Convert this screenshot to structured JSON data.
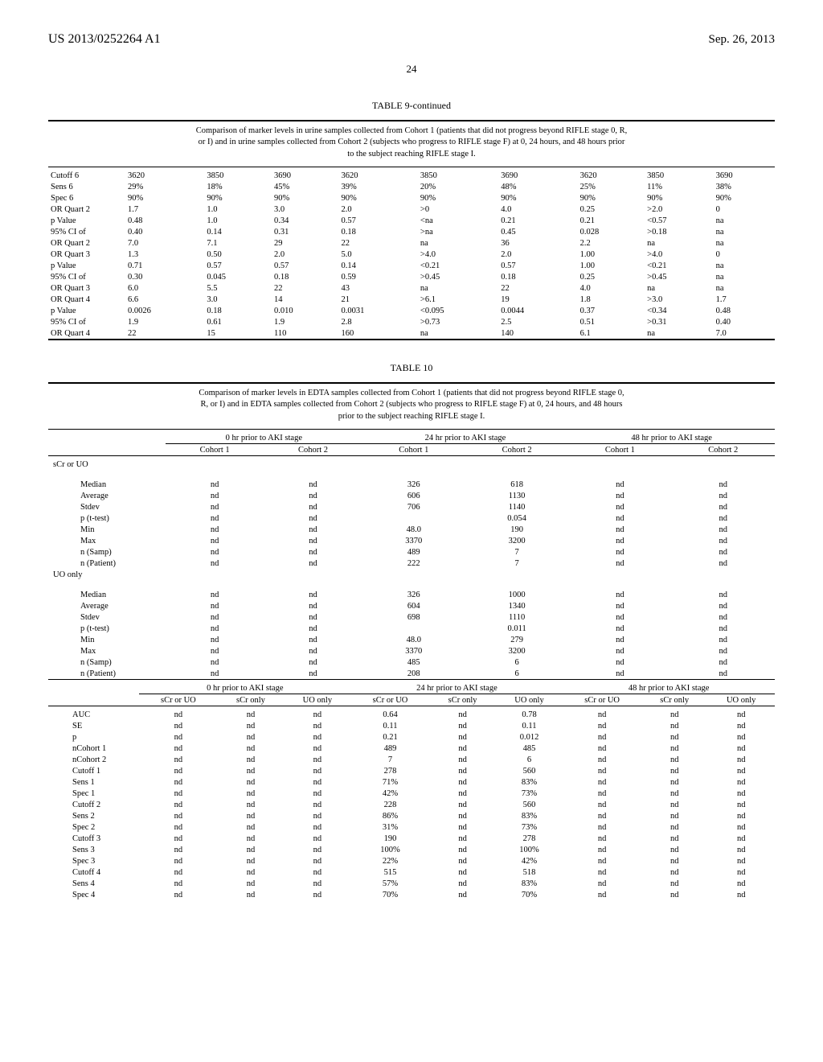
{
  "header": {
    "patent": "US 2013/0252264 A1",
    "date": "Sep. 26, 2013",
    "page": "24"
  },
  "table9": {
    "title": "TABLE 9-continued",
    "desc": "Comparison of marker levels in urine samples collected from Cohort 1 (patients that did not progress beyond RIFLE stage 0, R, or I) and in urine samples collected from Cohort 2 (subjects who progress to RIFLE stage F) at 0, 24 hours, and 48 hours prior to the subject reaching RIFLE stage I.",
    "rows": [
      [
        "Cutoff 6",
        "3620",
        "3850",
        "3690",
        "3620",
        "3850",
        "3690",
        "3620",
        "3850",
        "3690"
      ],
      [
        "Sens 6",
        "29%",
        "18%",
        "45%",
        "39%",
        "20%",
        "48%",
        "25%",
        "11%",
        "38%"
      ],
      [
        "Spec 6",
        "90%",
        "90%",
        "90%",
        "90%",
        "90%",
        "90%",
        "90%",
        "90%",
        "90%"
      ],
      [
        "OR Quart 2",
        "1.7",
        "1.0",
        "3.0",
        "2.0",
        ">0",
        "4.0",
        "0.25",
        ">2.0",
        "0"
      ],
      [
        "p Value",
        "0.48",
        "1.0",
        "0.34",
        "0.57",
        "<na",
        "0.21",
        "0.21",
        "<0.57",
        "na"
      ],
      [
        "95% CI of",
        "0.40",
        "0.14",
        "0.31",
        "0.18",
        ">na",
        "0.45",
        "0.028",
        ">0.18",
        "na"
      ],
      [
        "OR Quart 2",
        "7.0",
        "7.1",
        "29",
        "22",
        "na",
        "36",
        "2.2",
        "na",
        "na"
      ],
      [
        "OR Quart 3",
        "1.3",
        "0.50",
        "2.0",
        "5.0",
        ">4.0",
        "2.0",
        "1.00",
        ">4.0",
        "0"
      ],
      [
        "p Value",
        "0.71",
        "0.57",
        "0.57",
        "0.14",
        "<0.21",
        "0.57",
        "1.00",
        "<0.21",
        "na"
      ],
      [
        "95% CI of",
        "0.30",
        "0.045",
        "0.18",
        "0.59",
        ">0.45",
        "0.18",
        "0.25",
        ">0.45",
        "na"
      ],
      [
        "OR Quart 3",
        "6.0",
        "5.5",
        "22",
        "43",
        "na",
        "22",
        "4.0",
        "na",
        "na"
      ],
      [
        "OR Quart 4",
        "6.6",
        "3.0",
        "14",
        "21",
        ">6.1",
        "19",
        "1.8",
        ">3.0",
        "1.7"
      ],
      [
        "p Value",
        "0.0026",
        "0.18",
        "0.010",
        "0.0031",
        "<0.095",
        "0.0044",
        "0.37",
        "<0.34",
        "0.48"
      ],
      [
        "95% CI of",
        "1.9",
        "0.61",
        "1.9",
        "2.8",
        ">0.73",
        "2.5",
        "0.51",
        ">0.31",
        "0.40"
      ],
      [
        "OR Quart 4",
        "22",
        "15",
        "110",
        "160",
        "na",
        "140",
        "6.1",
        "na",
        "7.0"
      ]
    ]
  },
  "table10": {
    "title": "TABLE 10",
    "desc": "Comparison of marker levels in EDTA samples collected from Cohort 1 (patients that did not progress beyond RIFLE stage 0, R, or I) and in EDTA samples collected from Cohort 2 (subjects who progress to RIFLE stage F) at 0, 24 hours, and 48 hours prior to the subject reaching RIFLE stage I.",
    "groupHeaders": [
      "0 hr prior to AKI stage",
      "24 hr prior to AKI stage",
      "48 hr prior to AKI stage"
    ],
    "subHeadersA": [
      "Cohort 1",
      "Cohort 2",
      "Cohort 1",
      "Cohort 2",
      "Cohort 1",
      "Cohort 2"
    ],
    "sectionA1": "sCr or UO",
    "rowsA1": [
      [
        "Median",
        "nd",
        "nd",
        "326",
        "618",
        "nd",
        "nd"
      ],
      [
        "Average",
        "nd",
        "nd",
        "606",
        "1130",
        "nd",
        "nd"
      ],
      [
        "Stdev",
        "nd",
        "nd",
        "706",
        "1140",
        "nd",
        "nd"
      ],
      [
        "p (t-test)",
        "nd",
        "nd",
        "",
        "0.054",
        "nd",
        "nd"
      ],
      [
        "Min",
        "nd",
        "nd",
        "48.0",
        "190",
        "nd",
        "nd"
      ],
      [
        "Max",
        "nd",
        "nd",
        "3370",
        "3200",
        "nd",
        "nd"
      ],
      [
        "n (Samp)",
        "nd",
        "nd",
        "489",
        "7",
        "nd",
        "nd"
      ],
      [
        "n (Patient)",
        "nd",
        "nd",
        "222",
        "7",
        "nd",
        "nd"
      ]
    ],
    "sectionA2": "UO only",
    "rowsA2": [
      [
        "Median",
        "nd",
        "nd",
        "326",
        "1000",
        "nd",
        "nd"
      ],
      [
        "Average",
        "nd",
        "nd",
        "604",
        "1340",
        "nd",
        "nd"
      ],
      [
        "Stdev",
        "nd",
        "nd",
        "698",
        "1110",
        "nd",
        "nd"
      ],
      [
        "p (t-test)",
        "nd",
        "nd",
        "",
        "0.011",
        "nd",
        "nd"
      ],
      [
        "Min",
        "nd",
        "nd",
        "48.0",
        "279",
        "nd",
        "nd"
      ],
      [
        "Max",
        "nd",
        "nd",
        "3370",
        "3200",
        "nd",
        "nd"
      ],
      [
        "n (Samp)",
        "nd",
        "nd",
        "485",
        "6",
        "nd",
        "nd"
      ],
      [
        "n (Patient)",
        "nd",
        "nd",
        "208",
        "6",
        "nd",
        "nd"
      ]
    ],
    "subHeadersB": [
      "sCr or UO",
      "sCr only",
      "UO only",
      "sCr or UO",
      "sCr only",
      "UO only",
      "sCr or UO",
      "sCr only",
      "UO only"
    ],
    "rowsB": [
      [
        "AUC",
        "nd",
        "nd",
        "nd",
        "0.64",
        "nd",
        "0.78",
        "nd",
        "nd",
        "nd"
      ],
      [
        "SE",
        "nd",
        "nd",
        "nd",
        "0.11",
        "nd",
        "0.11",
        "nd",
        "nd",
        "nd"
      ],
      [
        "p",
        "nd",
        "nd",
        "nd",
        "0.21",
        "nd",
        "0.012",
        "nd",
        "nd",
        "nd"
      ],
      [
        "nCohort 1",
        "nd",
        "nd",
        "nd",
        "489",
        "nd",
        "485",
        "nd",
        "nd",
        "nd"
      ],
      [
        "nCohort 2",
        "nd",
        "nd",
        "nd",
        "7",
        "nd",
        "6",
        "nd",
        "nd",
        "nd"
      ],
      [
        "Cutoff 1",
        "nd",
        "nd",
        "nd",
        "278",
        "nd",
        "560",
        "nd",
        "nd",
        "nd"
      ],
      [
        "Sens 1",
        "nd",
        "nd",
        "nd",
        "71%",
        "nd",
        "83%",
        "nd",
        "nd",
        "nd"
      ],
      [
        "Spec 1",
        "nd",
        "nd",
        "nd",
        "42%",
        "nd",
        "73%",
        "nd",
        "nd",
        "nd"
      ],
      [
        "Cutoff 2",
        "nd",
        "nd",
        "nd",
        "228",
        "nd",
        "560",
        "nd",
        "nd",
        "nd"
      ],
      [
        "Sens 2",
        "nd",
        "nd",
        "nd",
        "86%",
        "nd",
        "83%",
        "nd",
        "nd",
        "nd"
      ],
      [
        "Spec 2",
        "nd",
        "nd",
        "nd",
        "31%",
        "nd",
        "73%",
        "nd",
        "nd",
        "nd"
      ],
      [
        "Cutoff 3",
        "nd",
        "nd",
        "nd",
        "190",
        "nd",
        "278",
        "nd",
        "nd",
        "nd"
      ],
      [
        "Sens 3",
        "nd",
        "nd",
        "nd",
        "100%",
        "nd",
        "100%",
        "nd",
        "nd",
        "nd"
      ],
      [
        "Spec 3",
        "nd",
        "nd",
        "nd",
        "22%",
        "nd",
        "42%",
        "nd",
        "nd",
        "nd"
      ],
      [
        "Cutoff 4",
        "nd",
        "nd",
        "nd",
        "515",
        "nd",
        "518",
        "nd",
        "nd",
        "nd"
      ],
      [
        "Sens 4",
        "nd",
        "nd",
        "nd",
        "57%",
        "nd",
        "83%",
        "nd",
        "nd",
        "nd"
      ],
      [
        "Spec 4",
        "nd",
        "nd",
        "nd",
        "70%",
        "nd",
        "70%",
        "nd",
        "nd",
        "nd"
      ]
    ]
  }
}
